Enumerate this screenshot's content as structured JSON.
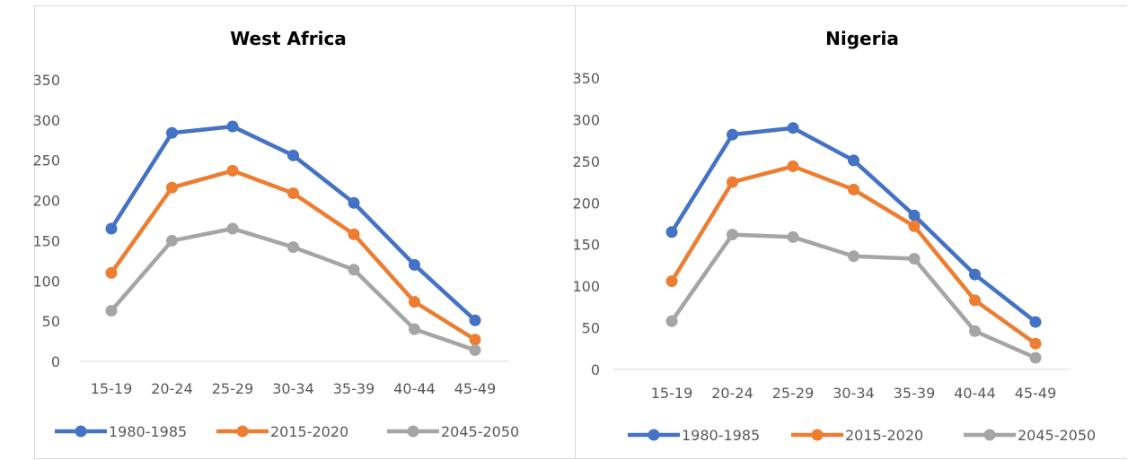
{
  "colors": {
    "series_1980_1985": "#4472C4",
    "series_2015_2020": "#ED7D31",
    "series_2045_2050": "#A5A5A5",
    "tick_text": "#595959",
    "axis_line": "#d9d9d9"
  },
  "chart_data": [
    {
      "type": "line",
      "title": "West Africa",
      "categories": [
        "15-19",
        "20-24",
        "25-29",
        "30-34",
        "35-39",
        "40-44",
        "45-49"
      ],
      "ylim": [
        0,
        350
      ],
      "yticks": [
        0,
        50,
        100,
        150,
        200,
        250,
        300,
        350
      ],
      "grid": false,
      "legend_position": "bottom",
      "xlabel": "",
      "ylabel": "",
      "series": [
        {
          "name": "1980-1985",
          "values": [
            165,
            284,
            292,
            256,
            197,
            120,
            51
          ]
        },
        {
          "name": "2015-2020",
          "values": [
            110,
            216,
            237,
            209,
            158,
            74,
            27
          ]
        },
        {
          "name": "2045-2050",
          "values": [
            63,
            150,
            165,
            142,
            114,
            40,
            14
          ]
        }
      ]
    },
    {
      "type": "line",
      "title": "Nigeria",
      "categories": [
        "15-19",
        "20-24",
        "25-29",
        "30-34",
        "35-39",
        "40-44",
        "45-49"
      ],
      "ylim": [
        0,
        350
      ],
      "yticks": [
        0,
        50,
        100,
        150,
        200,
        250,
        300,
        350
      ],
      "grid": false,
      "legend_position": "bottom",
      "xlabel": "",
      "ylabel": "",
      "series": [
        {
          "name": "1980-1985",
          "values": [
            165,
            282,
            290,
            251,
            185,
            114,
            57
          ]
        },
        {
          "name": "2015-2020",
          "values": [
            106,
            225,
            244,
            216,
            172,
            83,
            31
          ]
        },
        {
          "name": "2045-2050",
          "values": [
            58,
            162,
            159,
            136,
            133,
            46,
            14
          ]
        }
      ]
    }
  ]
}
